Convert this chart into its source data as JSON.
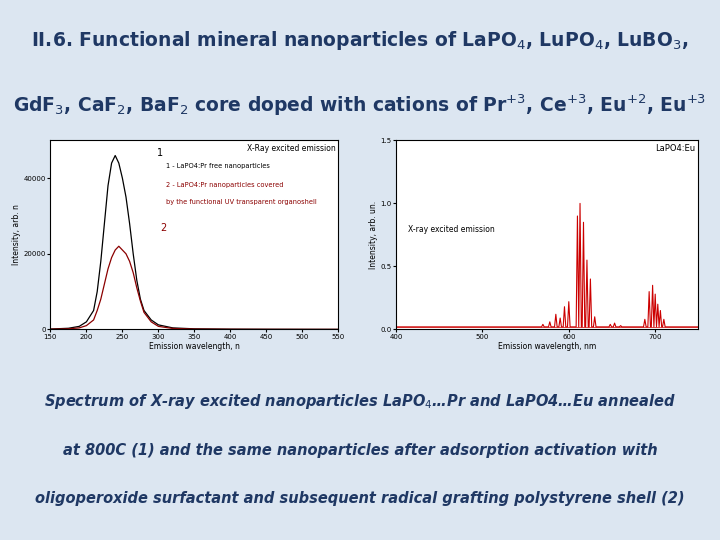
{
  "bg_color": "#dce6f1",
  "plot_area_bg": "#ffffff",
  "title_color": "#1f3864",
  "caption_color": "#1f3864",
  "title_line1": "II.6. Functional mineral nanoparticles of LaPO$_4$, LuPO$_4$, LuBO$_3$,",
  "title_line2": "GdF$_3$, CaF$_2$, BaF$_2$ core doped with cations of Pr$^{+3}$, Ce$^{+3}$, Eu$^{+2}$, Eu$^{+3}$",
  "left_plot": {
    "title": "X-Ray excited emission",
    "xlabel": "Emission wavelength, n",
    "ylabel": "Intensity, arb. n",
    "legend1": "1 - LaPO4:Pr free nanoparticles",
    "legend2": "2 - LaPO4:Pr nanoparticles covered",
    "legend3": "by the functional UV transparent organoshell",
    "xlim": [
      150,
      550
    ],
    "ylim": [
      0,
      50000
    ],
    "yticks": [
      0,
      20000,
      40000
    ],
    "xtick_vals": [
      150,
      200,
      250,
      300,
      350,
      400,
      450,
      500,
      550
    ],
    "curve1_x": [
      150,
      175,
      190,
      200,
      210,
      215,
      220,
      225,
      230,
      235,
      240,
      245,
      250,
      255,
      260,
      265,
      270,
      275,
      280,
      290,
      300,
      320,
      350,
      400,
      450,
      500,
      550
    ],
    "curve1_y": [
      100,
      300,
      800,
      2000,
      5000,
      10000,
      18000,
      28000,
      38000,
      44000,
      46000,
      44000,
      40000,
      35000,
      28000,
      20000,
      13000,
      8000,
      5000,
      2500,
      1200,
      400,
      150,
      60,
      30,
      15,
      5
    ],
    "curve2_x": [
      150,
      175,
      190,
      200,
      210,
      215,
      220,
      225,
      230,
      235,
      240,
      245,
      250,
      255,
      260,
      265,
      270,
      275,
      280,
      290,
      300,
      320,
      350,
      400,
      450,
      500,
      550
    ],
    "curve2_y": [
      50,
      150,
      400,
      1000,
      2500,
      5000,
      8000,
      12000,
      16000,
      19000,
      21000,
      22000,
      21000,
      20000,
      18000,
      15000,
      11000,
      7500,
      4500,
      2000,
      800,
      250,
      80,
      30,
      15,
      8,
      3
    ],
    "color1": "#000000",
    "color2": "#8b0000"
  },
  "right_plot": {
    "title": "LaPO4:Eu",
    "xlabel": "Emission wavelength, nm",
    "ylabel": "Intensity, arb. un.",
    "label_inside": "X-ray excited emission",
    "xlim": [
      400,
      750
    ],
    "ylim": [
      0.0,
      1.5
    ],
    "ytick_vals": [
      0.0,
      0.5,
      1.0,
      1.5
    ],
    "xtick_vals": [
      400,
      500,
      600,
      700
    ],
    "color": "#cc0000",
    "baseline": 0.02,
    "peaks": [
      [
        570,
        0.04
      ],
      [
        578,
        0.06
      ],
      [
        585,
        0.12
      ],
      [
        590,
        0.09
      ],
      [
        595,
        0.18
      ],
      [
        600,
        0.22
      ],
      [
        610,
        0.9
      ],
      [
        613,
        1.0
      ],
      [
        617,
        0.85
      ],
      [
        621,
        0.55
      ],
      [
        625,
        0.4
      ],
      [
        630,
        0.1
      ],
      [
        648,
        0.04
      ],
      [
        653,
        0.05
      ],
      [
        660,
        0.03
      ],
      [
        688,
        0.08
      ],
      [
        693,
        0.3
      ],
      [
        697,
        0.35
      ],
      [
        700,
        0.28
      ],
      [
        703,
        0.2
      ],
      [
        706,
        0.15
      ],
      [
        710,
        0.08
      ]
    ]
  },
  "caption_line1": "Spectrum of X-ray excited nanoparticles LaPO$_4$…Pr and LaPO4…Eu annealed",
  "caption_line2": "at 800C (1) and the same nanoparticles after adsorption activation with",
  "caption_line3": "oligoperoxide surfactant and subsequent radical grafting polystyrene shell (2)"
}
